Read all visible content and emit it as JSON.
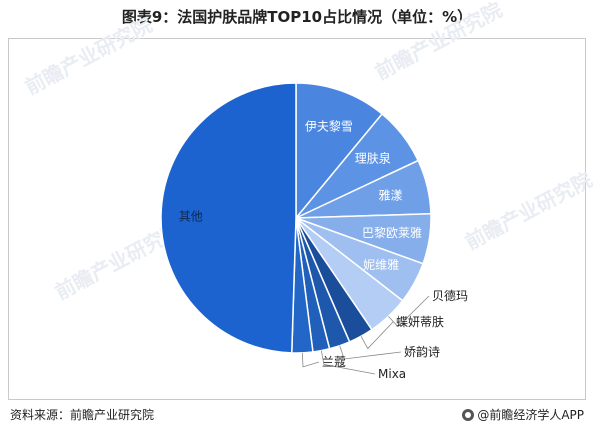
{
  "title": "图表9：法国护肤品牌TOP10占比情况（单位：%）",
  "watermark_text": "前瞻产业研究院",
  "footer": {
    "source": "资料来源：前瞻产业研究院",
    "brand": "@前瞻经济学人APP"
  },
  "chart_data": {
    "type": "pie",
    "title": "图表9：法国护肤品牌TOP10占比情况（单位：%）",
    "start_angle_deg": 0,
    "direction": "clockwise",
    "labels_inside": [
      "伊夫黎雪",
      "理肤泉",
      "雅漾",
      "巴黎欧莱雅",
      "妮维雅",
      "其他"
    ],
    "slices": [
      {
        "label": "伊夫黎雪",
        "value": 11.0,
        "color": "#4a86e0"
      },
      {
        "label": "理肤泉",
        "value": 7.0,
        "color": "#5c93e4"
      },
      {
        "label": "雅漾",
        "value": 6.5,
        "color": "#6fa0e7"
      },
      {
        "label": "巴黎欧莱雅",
        "value": 6.0,
        "color": "#86aeea"
      },
      {
        "label": "妮维雅",
        "value": 5.0,
        "color": "#9ebfef"
      },
      {
        "label": "贝德玛",
        "value": 5.0,
        "color": "#b4cdf4"
      },
      {
        "label": "蝶妍蒂肤",
        "value": 3.0,
        "color": "#1a4d9a"
      },
      {
        "label": "娇韵诗",
        "value": 2.5,
        "color": "#1d58ad"
      },
      {
        "label": "Mixa",
        "value": 2.0,
        "color": "#2060bb"
      },
      {
        "label": "兰蔻",
        "value": 2.5,
        "color": "#2266c8"
      },
      {
        "label": "其他",
        "value": 49.5,
        "color": "#1c63cf"
      }
    ]
  }
}
